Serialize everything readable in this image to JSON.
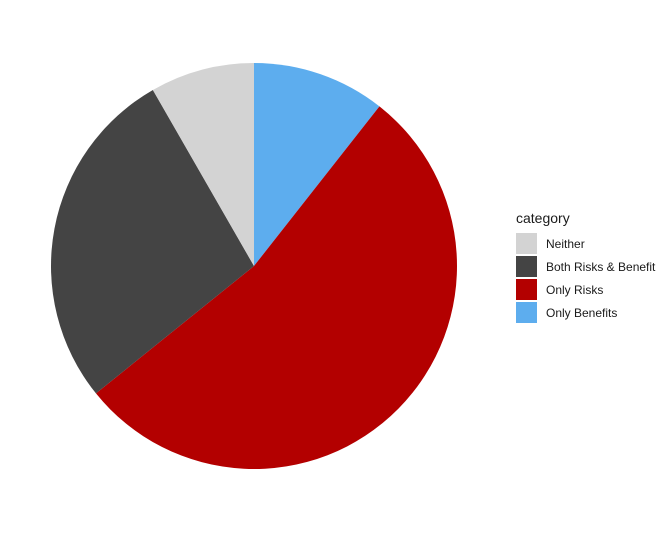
{
  "chart_data": {
    "type": "pie",
    "legend_title": "category",
    "legend_position": "right",
    "slices": [
      {
        "label": "Only Benefits",
        "value": 10.6,
        "color": "#5DADEE"
      },
      {
        "label": "Only Risks",
        "value": 53.6,
        "color": "#B30000"
      },
      {
        "label": "Both Risks & Benefit",
        "value": 27.5,
        "color": "#444444"
      },
      {
        "label": "Neither",
        "value": 8.3,
        "color": "#D3D3D3"
      }
    ],
    "legend_order": [
      "Neither",
      "Both Risks & Benefit",
      "Only Risks",
      "Only Benefits"
    ]
  }
}
